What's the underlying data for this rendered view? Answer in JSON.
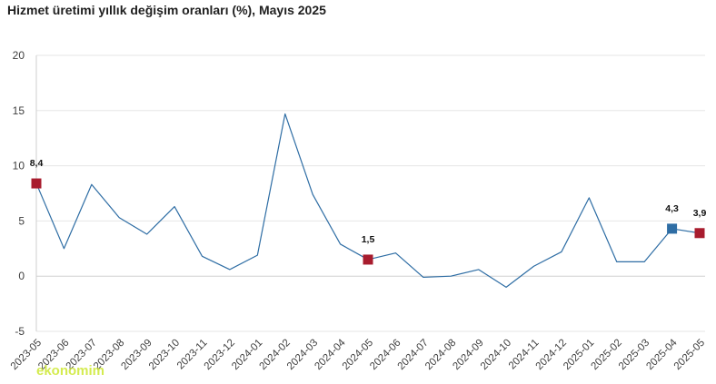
{
  "chart_data": {
    "type": "line",
    "title": "Hizmet üretimi yıllık değişim oranları (%), Mayıs 2025",
    "xlabel": "",
    "ylabel": "",
    "ylim": [
      -5,
      20
    ],
    "yticks": [
      "-5",
      "0",
      "5",
      "10",
      "15",
      "20"
    ],
    "grid": "horizontal",
    "legend": "none",
    "categories": [
      "2023-05",
      "2023-06",
      "2023-07",
      "2023-08",
      "2023-09",
      "2023-10",
      "2023-11",
      "2023-12",
      "2024-01",
      "2024-02",
      "2024-03",
      "2024-04",
      "2024-05",
      "2024-06",
      "2024-07",
      "2024-08",
      "2024-09",
      "2024-10",
      "2024-11",
      "2024-12",
      "2025-01",
      "2025-02",
      "2025-03",
      "2025-04",
      "2025-05"
    ],
    "series": [
      {
        "values": [
          8.4,
          2.5,
          8.3,
          5.3,
          3.8,
          6.3,
          1.8,
          0.6,
          1.9,
          14.7,
          7.4,
          2.9,
          1.5,
          2.1,
          -0.1,
          0.0,
          0.6,
          -1.0,
          0.9,
          2.2,
          7.1,
          1.3,
          1.3,
          4.3,
          3.9
        ],
        "color": "#2e6da4"
      }
    ],
    "highlights": [
      {
        "index": 0,
        "label": "8,4",
        "color": "#a81c2e"
      },
      {
        "index": 12,
        "label": "1,5",
        "color": "#a81c2e"
      },
      {
        "index": 23,
        "label": "4,3",
        "color": "#2e6da4"
      },
      {
        "index": 24,
        "label": "3,9",
        "color": "#a81c2e"
      }
    ]
  },
  "watermark": "ekonomim"
}
